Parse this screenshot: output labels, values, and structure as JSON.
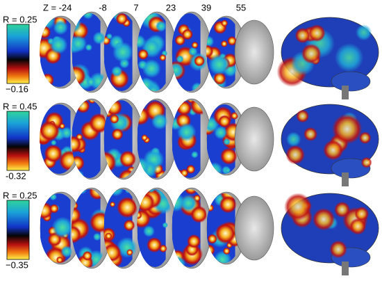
{
  "slice_axis": {
    "label": "Z =",
    "positions": [
      "-24",
      "-8",
      "7",
      "23",
      "39",
      "55"
    ]
  },
  "panels": [
    {
      "max_label": "R = 0.25",
      "min_label": "−0.16"
    },
    {
      "max_label": "R = 0.45",
      "min_label": "-0.32"
    },
    {
      "max_label": "R = 0.25",
      "min_label": "−0.35"
    }
  ]
}
